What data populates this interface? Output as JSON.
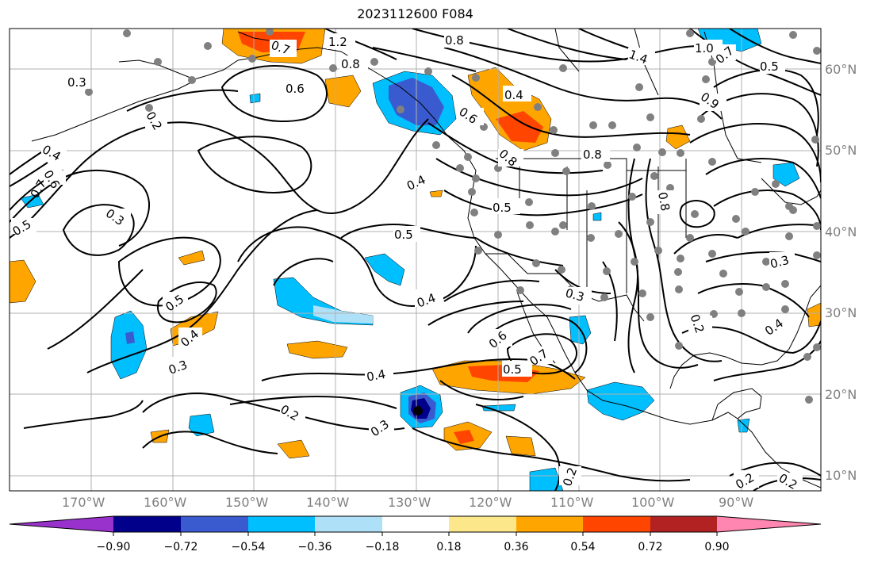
{
  "title": "2023112600 F084",
  "lon_labels": [
    "170°W",
    "160°W",
    "150°W",
    "140°W",
    "130°W",
    "120°W",
    "110°W",
    "100°W",
    "90°W"
  ],
  "lat_labels": [
    "60°N",
    "50°N",
    "40°N",
    "30°N",
    "20°N",
    "10°N"
  ],
  "contour_labels": [
    "0.3",
    "0.2",
    "0.4",
    "0.6",
    "0.7",
    "0.5",
    "0.3",
    "0.5",
    "0.4",
    "0.3",
    "0.2",
    "0.6",
    "0.7",
    "0.8",
    "0.4",
    "0.5",
    "0.4",
    "0.4",
    "0.5",
    "0.6",
    "0.7",
    "0.5",
    "0.3",
    "0.4",
    "0.6",
    "0.8",
    "1.2",
    "1.4",
    "1.0",
    "0.9",
    "0.8",
    "0.8",
    "0.5",
    "0.3",
    "0.2",
    "0.4",
    "0.3",
    "0.2",
    "0.2",
    "0.7",
    "0.8",
    "0.2"
  ],
  "colorbar": {
    "colors": [
      "#9932cc",
      "#00008b",
      "#3a5bd0",
      "#00bfff",
      "#aee0f8",
      "#ffffff",
      "#fce88a",
      "#ffa500",
      "#ff4500",
      "#b22222",
      "#ff86b0"
    ],
    "tick_labels": [
      "−0.90",
      "−0.72",
      "−0.54",
      "−0.36",
      "−0.18",
      "0.18",
      "0.36",
      "0.54",
      "0.72",
      "0.90"
    ],
    "tick_values": [
      -0.9,
      -0.72,
      -0.54,
      -0.36,
      -0.18,
      0.18,
      0.36,
      0.54,
      0.72,
      0.9
    ]
  }
}
